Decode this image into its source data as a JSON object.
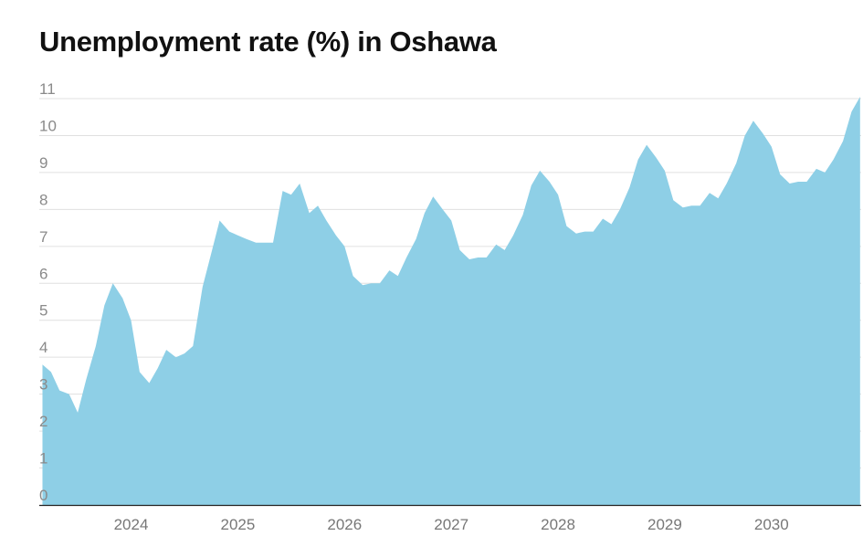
{
  "chart_data": {
    "type": "area",
    "title": "Unemployment rate (%) in Oshawa",
    "xlabel": "",
    "ylabel": "",
    "ylim": [
      0,
      11
    ],
    "xlim": [
      2023.14,
      2030.84
    ],
    "grid": true,
    "legend": "none",
    "y_ticks": [
      "0",
      "1",
      "2",
      "3",
      "4",
      "5",
      "6",
      "7",
      "8",
      "9",
      "10",
      "11"
    ],
    "x_ticks": [
      {
        "label": "2024",
        "value": 2024.0
      },
      {
        "label": "2025",
        "value": 2025.0
      },
      {
        "label": "2026",
        "value": 2026.0
      },
      {
        "label": "2027",
        "value": 2027.0
      },
      {
        "label": "2028",
        "value": 2028.0
      },
      {
        "label": "2029",
        "value": 2029.0
      },
      {
        "label": "2030",
        "value": 2030.0
      }
    ],
    "colors": {
      "fill": "#8ecfe6",
      "grid": "#e0e0e0",
      "axis": "#222222"
    },
    "series": [
      {
        "x": [
          2023.17,
          2023.25,
          2023.33,
          2023.42,
          2023.5,
          2023.58,
          2023.67,
          2023.75,
          2023.83,
          2023.92,
          2024.0,
          2024.08,
          2024.17,
          2024.25,
          2024.33,
          2024.42,
          2024.5,
          2024.58,
          2024.67,
          2024.75,
          2024.83,
          2024.92,
          2025.0,
          2025.08,
          2025.17,
          2025.25,
          2025.33,
          2025.42,
          2025.5,
          2025.58,
          2025.67,
          2025.75,
          2025.83,
          2025.92,
          2026.0,
          2026.08,
          2026.17,
          2026.25,
          2026.33,
          2026.42,
          2026.5,
          2026.58,
          2026.67,
          2026.75,
          2026.83,
          2026.92,
          2027.0,
          2027.08,
          2027.17,
          2027.25,
          2027.33,
          2027.42,
          2027.5,
          2027.58,
          2027.67,
          2027.75,
          2027.83,
          2027.92,
          2028.0,
          2028.08,
          2028.17,
          2028.25,
          2028.33,
          2028.42,
          2028.5,
          2028.58,
          2028.67,
          2028.75,
          2028.83,
          2028.92,
          2029.0,
          2029.08,
          2029.17,
          2029.25,
          2029.33,
          2029.42,
          2029.5,
          2029.58,
          2029.67,
          2029.75,
          2029.83,
          2029.92,
          2030.0,
          2030.08,
          2030.17,
          2030.25,
          2030.33,
          2030.42,
          2030.5,
          2030.58,
          2030.67,
          2030.75,
          2030.83
        ],
        "values": [
          3.8,
          3.6,
          3.1,
          3.0,
          2.5,
          3.4,
          4.3,
          5.4,
          6.0,
          5.6,
          5.0,
          3.6,
          3.3,
          3.7,
          4.2,
          4.0,
          4.1,
          4.3,
          5.9,
          6.8,
          7.7,
          7.4,
          7.3,
          7.2,
          7.1,
          7.1,
          7.1,
          8.5,
          8.4,
          8.7,
          7.9,
          8.1,
          7.7,
          7.3,
          7.0,
          6.2,
          5.95,
          6.0,
          6.0,
          6.35,
          6.2,
          6.7,
          7.2,
          7.9,
          8.35,
          8.0,
          7.7,
          6.9,
          6.65,
          6.7,
          6.7,
          7.05,
          6.9,
          7.3,
          7.85,
          8.65,
          9.05,
          8.75,
          8.4,
          7.55,
          7.35,
          7.4,
          7.4,
          7.75,
          7.6,
          8.0,
          8.6,
          9.35,
          9.75,
          9.4,
          9.05,
          8.25,
          8.05,
          8.1,
          8.1,
          8.45,
          8.3,
          8.7,
          9.25,
          10.0,
          10.4,
          10.05,
          9.7,
          8.95,
          8.7,
          8.75,
          8.75,
          9.1,
          9.0,
          9.35,
          9.85,
          10.65,
          11.05
        ]
      }
    ]
  }
}
